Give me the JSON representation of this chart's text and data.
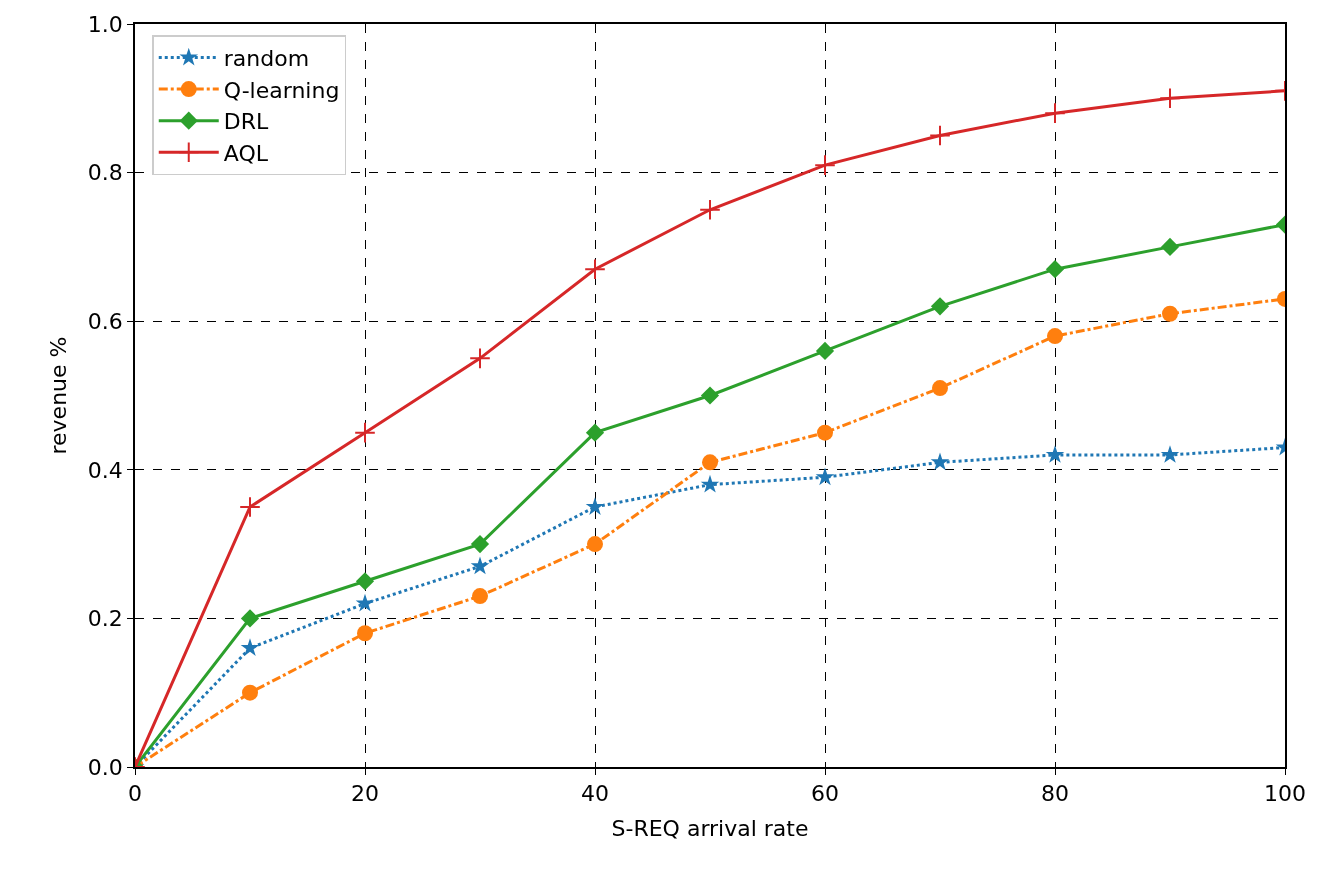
{
  "chart_data": {
    "type": "line",
    "xlabel": "S-REQ arrival rate",
    "ylabel": "revenue %",
    "x": [
      0,
      10,
      20,
      30,
      40,
      50,
      60,
      70,
      80,
      90,
      100
    ],
    "series": [
      {
        "name": "random",
        "color": "#1f77b4",
        "marker": "star",
        "line_style": "dotted",
        "values": [
          0,
          0.16,
          0.22,
          0.27,
          0.35,
          0.38,
          0.39,
          0.41,
          0.42,
          0.42,
          0.43
        ]
      },
      {
        "name": "Q-learning",
        "color": "#ff7f0e",
        "marker": "circle",
        "line_style": "dashed",
        "values": [
          0,
          0.1,
          0.18,
          0.23,
          0.3,
          0.41,
          0.45,
          0.51,
          0.58,
          0.61,
          0.63
        ]
      },
      {
        "name": "DRL",
        "color": "#2ca02c",
        "marker": "diamond",
        "line_style": "solid",
        "values": [
          0,
          0.2,
          0.25,
          0.3,
          0.45,
          0.5,
          0.56,
          0.62,
          0.67,
          0.7,
          0.73
        ]
      },
      {
        "name": "AQL",
        "color": "#d62728",
        "marker": "cross",
        "line_style": "solid",
        "values": [
          0,
          0.35,
          0.45,
          0.55,
          0.67,
          0.75,
          0.81,
          0.85,
          0.88,
          0.9,
          0.91
        ]
      }
    ],
    "xlim": [
      0,
      100
    ],
    "xticks": [
      0,
      20,
      40,
      60,
      80,
      100
    ],
    "ylim": [
      0,
      1
    ],
    "yticks": [
      {
        "value": 0,
        "label": "0.0"
      },
      0.2,
      0.4,
      0.6,
      0.8,
      {
        "value": 1,
        "label": "1.0"
      }
    ],
    "grid": true,
    "legend": "top left"
  }
}
